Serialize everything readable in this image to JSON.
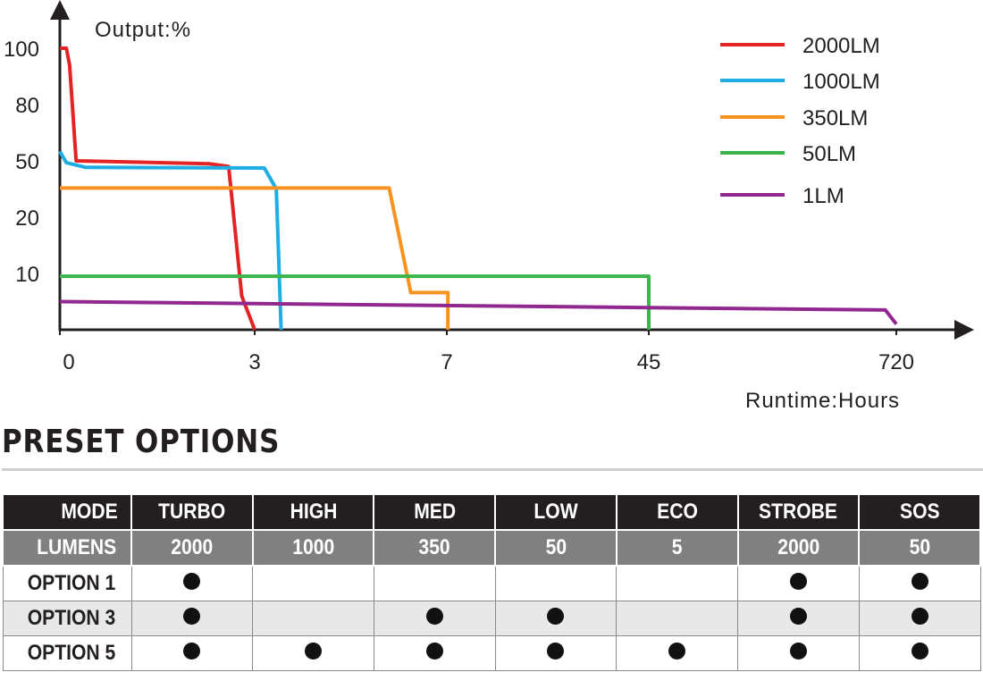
{
  "chart_data": {
    "type": "line",
    "ylabel": "Output:%",
    "xlabel": "Runtime:Hours",
    "y_ticks": [
      "100",
      "80",
      "50",
      "20",
      "10"
    ],
    "x_ticks": [
      "0",
      "3",
      "7",
      "45",
      "720"
    ],
    "legend_position": "top-right",
    "series": [
      {
        "name": "2000LM",
        "color": "#e32424",
        "points": [
          [
            0,
            100
          ],
          [
            0.1,
            100
          ],
          [
            0.15,
            94
          ],
          [
            0.25,
            50
          ],
          [
            2.3,
            48.5
          ],
          [
            2.6,
            47
          ],
          [
            2.8,
            6
          ],
          [
            3.0,
            0
          ]
        ]
      },
      {
        "name": "1000LM",
        "color": "#1eaee4",
        "points": [
          [
            0,
            55
          ],
          [
            0.1,
            49
          ],
          [
            0.4,
            46.5
          ],
          [
            3.2,
            46.2
          ],
          [
            3.45,
            35
          ],
          [
            3.45,
            35
          ],
          [
            3.55,
            0
          ]
        ]
      },
      {
        "name": "350LM",
        "color": "#f7931e",
        "points": [
          [
            0,
            35.5
          ],
          [
            5.8,
            35.5
          ],
          [
            6.25,
            6.6
          ],
          [
            7.2,
            6.6
          ],
          [
            7.2,
            0
          ]
        ]
      },
      {
        "name": "50LM",
        "color": "#39b54a",
        "points": [
          [
            0,
            9.5
          ],
          [
            45,
            9.5
          ],
          [
            45,
            0
          ]
        ]
      },
      {
        "name": "1LM",
        "color": "#92278f",
        "points": [
          [
            0,
            5
          ],
          [
            690,
            3.5
          ],
          [
            720,
            1
          ]
        ]
      }
    ]
  },
  "section_title": "PRESET OPTIONS",
  "table": {
    "mode_label": "MODE",
    "lumens_label": "LUMENS",
    "columns": [
      {
        "mode": "TURBO",
        "lumens": "2000"
      },
      {
        "mode": "HIGH",
        "lumens": "1000"
      },
      {
        "mode": "MED",
        "lumens": "350"
      },
      {
        "mode": "LOW",
        "lumens": "50"
      },
      {
        "mode": "ECO",
        "lumens": "5"
      },
      {
        "mode": "STROBE",
        "lumens": "2000"
      },
      {
        "mode": "SOS",
        "lumens": "50"
      }
    ],
    "options": [
      {
        "label": "OPTION 1",
        "includes": [
          true,
          false,
          false,
          false,
          false,
          true,
          true
        ]
      },
      {
        "label": "OPTION 3",
        "includes": [
          true,
          false,
          true,
          true,
          false,
          true,
          true
        ]
      },
      {
        "label": "OPTION 5",
        "includes": [
          true,
          true,
          true,
          true,
          true,
          true,
          true
        ]
      }
    ]
  }
}
